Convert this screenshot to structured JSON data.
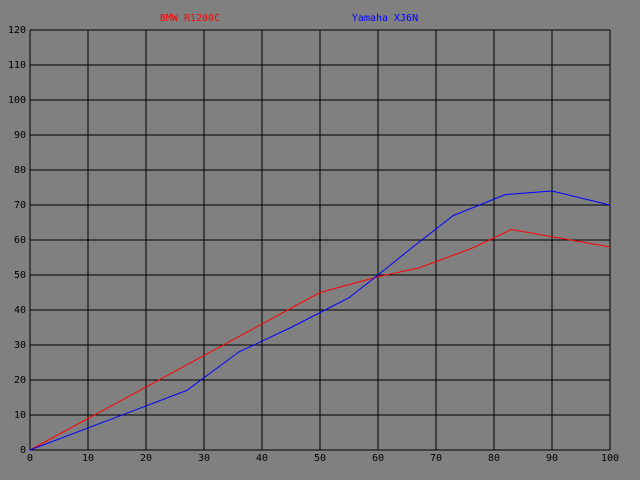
{
  "chart_data": {
    "type": "line",
    "series": [
      {
        "name": "BMW R1200C",
        "color": "#ff0000",
        "x": [
          0,
          50,
          60,
          67,
          76,
          83,
          100
        ],
        "values": [
          0,
          45,
          49.5,
          52,
          57.5,
          63,
          58
        ]
      },
      {
        "name": "Yamaha XJ6N",
        "color": "#0000ff",
        "x": [
          0,
          27,
          36,
          45,
          55,
          60,
          66,
          73,
          82,
          90,
          100
        ],
        "values": [
          0,
          17,
          28,
          35,
          43.5,
          50,
          58,
          67,
          73,
          74,
          70
        ]
      }
    ],
    "xlim": [
      0,
      100
    ],
    "xticks": [
      0,
      10,
      20,
      30,
      40,
      50,
      60,
      70,
      80,
      90,
      100
    ],
    "ylim": [
      0,
      120
    ],
    "yticks": [
      0,
      10,
      20,
      30,
      40,
      50,
      60,
      70,
      80,
      90,
      100,
      110,
      120
    ],
    "grid": true
  }
}
